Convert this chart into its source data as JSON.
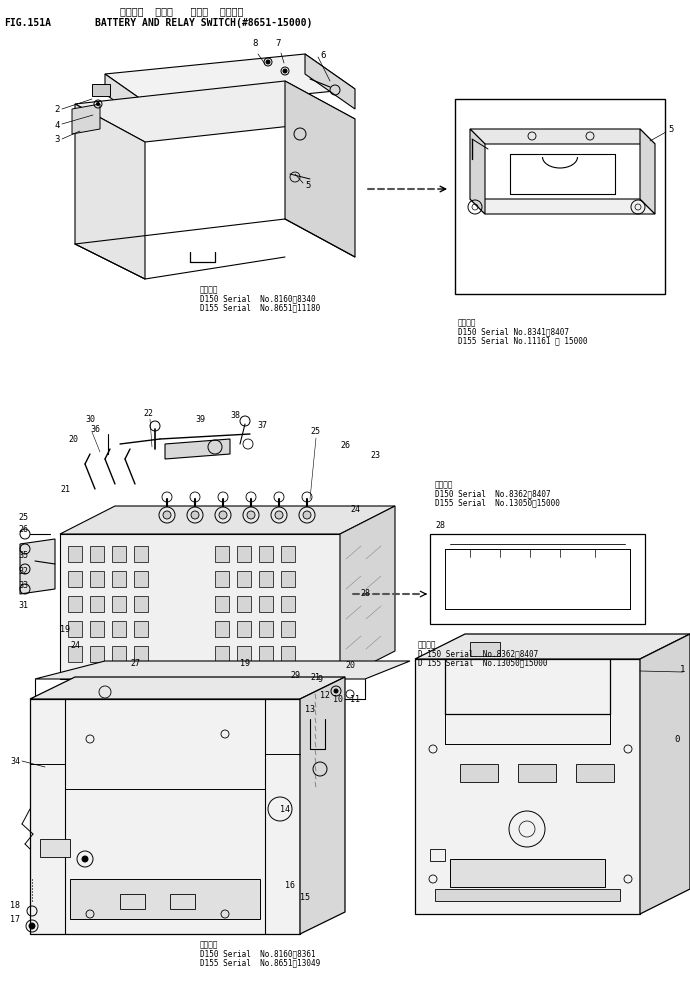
{
  "title_japanese": "バッテリ および リレー スイッチ",
  "title_english": "BATTERY AND RELAY SWITCH(#8651-15000)",
  "fig_label": "FIG.151A",
  "background_color": "#ffffff",
  "line_color": "#000000",
  "text_color": "#000000",
  "fig_width": 6.9,
  "fig_height": 9.87,
  "dpi": 100
}
